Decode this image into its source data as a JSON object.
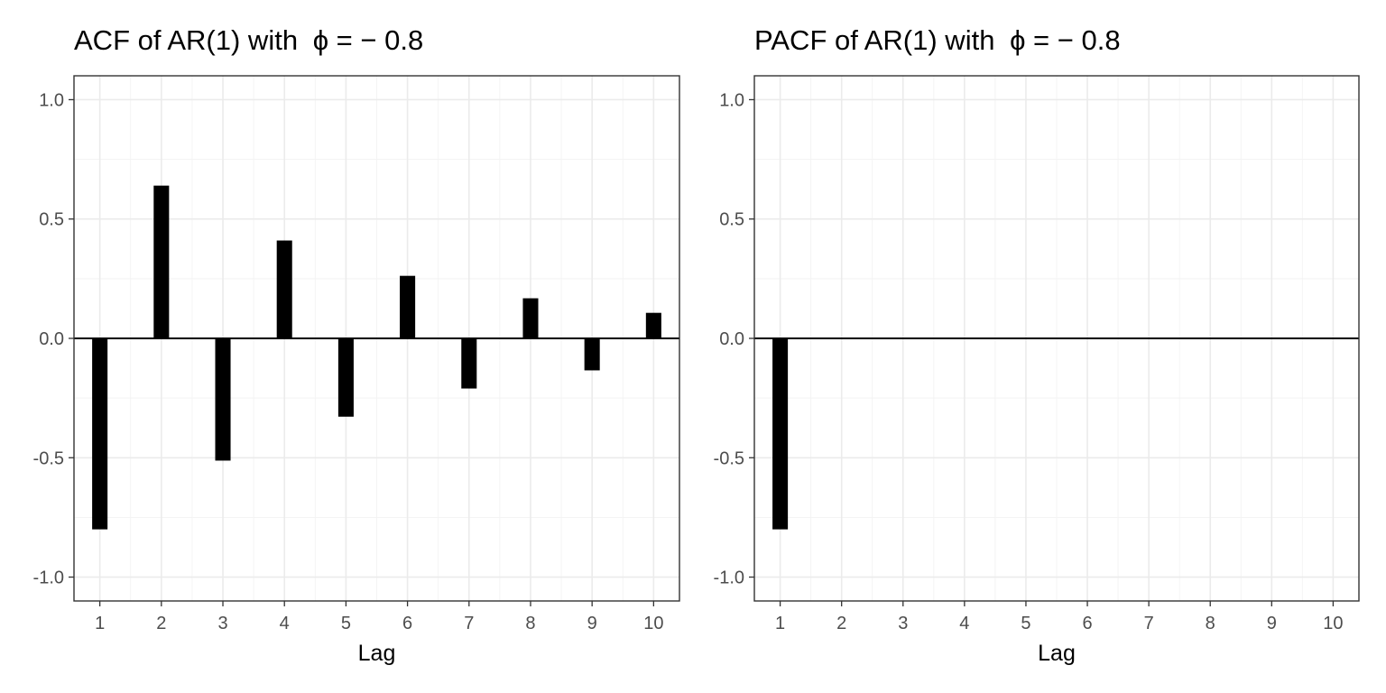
{
  "chart_data": [
    {
      "type": "bar",
      "title": "ACF of AR(1) with",
      "title_math": "ϕ = − 0.8",
      "xlabel": "Lag",
      "ylabel": "",
      "x": [
        1,
        2,
        3,
        4,
        5,
        6,
        7,
        8,
        9,
        10
      ],
      "x_tick_labels": [
        "1",
        "2",
        "3",
        "4",
        "5",
        "6",
        "7",
        "8",
        "9",
        "10"
      ],
      "values": [
        -0.8,
        0.64,
        -0.512,
        0.41,
        -0.328,
        0.262,
        -0.21,
        0.168,
        -0.134,
        0.107
      ],
      "ylim": [
        -1.1,
        1.1
      ],
      "xlim": [
        0.58,
        10.42
      ],
      "y_ticks": [
        -1.0,
        -0.5,
        0.0,
        0.5,
        1.0
      ],
      "y_tick_labels": [
        "-1.0",
        "-0.5",
        "0.0",
        "0.5",
        "1.0"
      ],
      "grid": true,
      "zero_line": true,
      "bar_color": "#000000"
    },
    {
      "type": "bar",
      "title": "PACF of AR(1) with",
      "title_math": "ϕ = − 0.8",
      "xlabel": "Lag",
      "ylabel": "",
      "x": [
        1,
        2,
        3,
        4,
        5,
        6,
        7,
        8,
        9,
        10
      ],
      "x_tick_labels": [
        "1",
        "2",
        "3",
        "4",
        "5",
        "6",
        "7",
        "8",
        "9",
        "10"
      ],
      "values": [
        -0.8,
        0,
        0,
        0,
        0,
        0,
        0,
        0,
        0,
        0
      ],
      "ylim": [
        -1.1,
        1.1
      ],
      "xlim": [
        0.58,
        10.42
      ],
      "y_ticks": [
        -1.0,
        -0.5,
        0.0,
        0.5,
        1.0
      ],
      "y_tick_labels": [
        "-1.0",
        "-0.5",
        "0.0",
        "0.5",
        "1.0"
      ],
      "grid": true,
      "zero_line": true,
      "bar_color": "#000000"
    }
  ]
}
